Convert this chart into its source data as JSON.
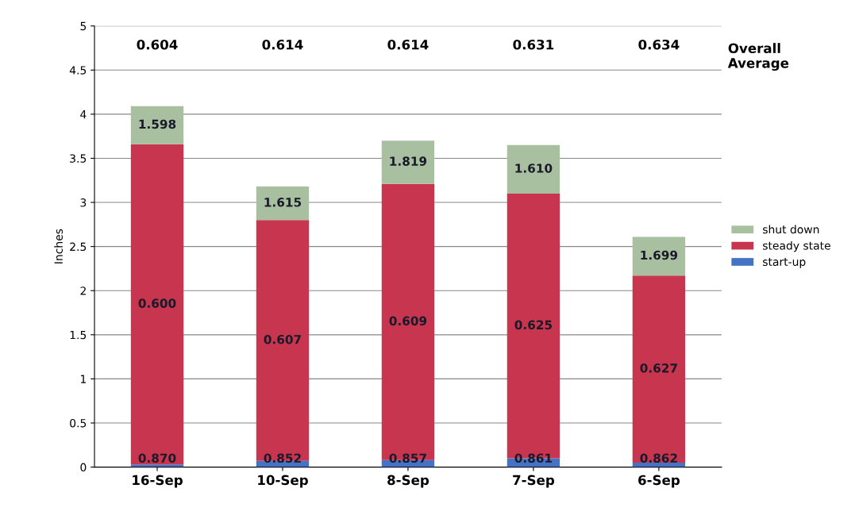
{
  "chart_data": {
    "type": "bar",
    "stacked": true,
    "ylabel": "Inches",
    "categories": [
      "16-Sep",
      "10-Sep",
      "8-Sep",
      "7-Sep",
      "6-Sep"
    ],
    "series": [
      {
        "name": "start-up",
        "color": "#4472c4",
        "values": [
          0.03,
          0.07,
          0.08,
          0.1,
          0.05
        ]
      },
      {
        "name": "steady state",
        "color": "#c8354f",
        "values": [
          3.63,
          2.73,
          3.13,
          3.0,
          2.12
        ]
      },
      {
        "name": "shut down",
        "color": "#a8c0a0",
        "values": [
          0.43,
          0.38,
          0.49,
          0.55,
          0.44
        ]
      }
    ],
    "annotations": [
      "0.604",
      "0.614",
      "0.614",
      "0.631",
      "0.634",
      "Overall\nAverage",
      "0.870",
      "0.852",
      "0.857",
      "0.861",
      "0.862",
      "0.600",
      "0.607",
      "0.609",
      "0.625",
      "0.627",
      "1.598",
      "1.615",
      "1.819",
      "1.610",
      "1.699"
    ],
    "ylim": [
      0,
      5
    ],
    "yticks": [
      0,
      0.5,
      1,
      1.5,
      2,
      2.5,
      3,
      3.5,
      4,
      4.5,
      5
    ],
    "grid": "y",
    "legend": "right"
  }
}
